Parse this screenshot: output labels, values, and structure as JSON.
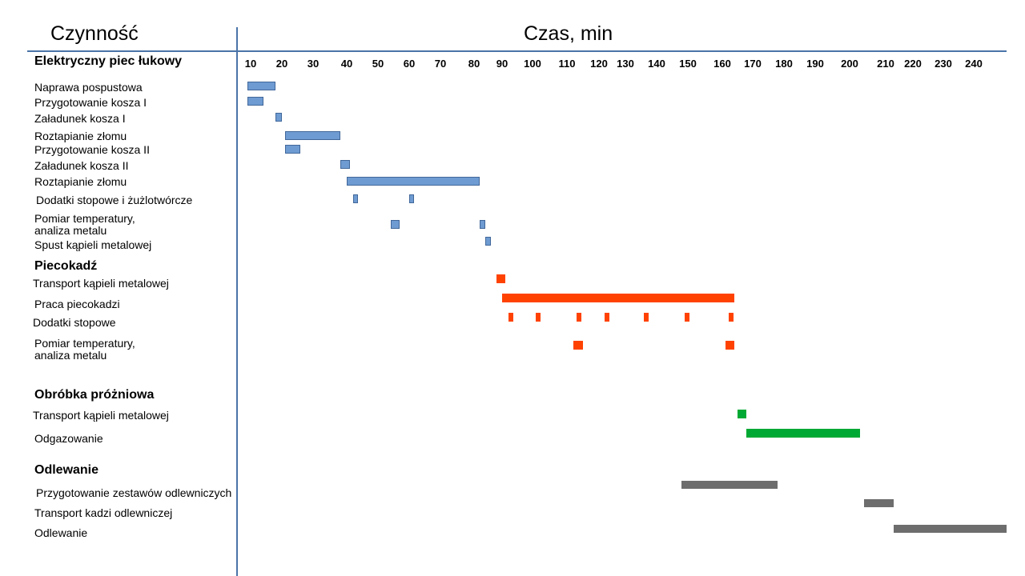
{
  "header": {
    "activity": "Czynność",
    "time": "Czas, min"
  },
  "colors": {
    "blue": "#6e9bd1",
    "red": "#ff4200",
    "green": "#00a933",
    "gray": "#6d6d6d",
    "axis": "#4a74a8"
  },
  "chart_data": {
    "type": "gantt",
    "xlabel": "Czas, min",
    "x_ticks": [
      10,
      20,
      30,
      40,
      50,
      60,
      70,
      80,
      90,
      100,
      110,
      120,
      130,
      140,
      150,
      160,
      170,
      180,
      190,
      200,
      210,
      220,
      230,
      240
    ],
    "sections": [
      {
        "name": "Elektryczny piec łukowy",
        "color": "blue",
        "tasks": [
          {
            "label": "Naprawa pospustowa",
            "segments": [
              [
                9,
                18
              ]
            ]
          },
          {
            "label": "Przygotowanie kosza I",
            "segments": [
              [
                9,
                14
              ]
            ]
          },
          {
            "label": "Załadunek kosza I",
            "segments": [
              [
                18,
                20
              ]
            ]
          },
          {
            "label": "Roztapianie złomu",
            "segments": [
              [
                21,
                38
              ]
            ]
          },
          {
            "label": "Przygotowanie kosza II",
            "segments": [
              [
                21,
                26
              ]
            ]
          },
          {
            "label": "Załadunek kosza II",
            "segments": [
              [
                38,
                41
              ]
            ]
          },
          {
            "label": "Roztapianie złomu",
            "segments": [
              [
                40,
                82
              ]
            ]
          },
          {
            "label": "Dodatki stopowe i żużlotwórcze",
            "segments": [
              [
                42,
                43
              ],
              [
                60,
                61
              ]
            ]
          },
          {
            "label": "Pomiar temperatury,\nanaliza metalu",
            "segments": [
              [
                54,
                57
              ],
              [
                82,
                84
              ]
            ]
          },
          {
            "label": "Spust kąpieli metalowej",
            "segments": [
              [
                84,
                86
              ]
            ]
          }
        ]
      },
      {
        "name": "Piecokadź",
        "color": "red",
        "tasks": [
          {
            "label": "Transport kąpieli metalowej",
            "segments": [
              [
                88,
                91
              ]
            ]
          },
          {
            "label": "Praca piecokadzi",
            "segments": [
              [
                90,
                164
              ]
            ]
          },
          {
            "label": "Dodatki stopowe",
            "segments": [
              [
                92,
                93
              ],
              [
                101,
                102
              ],
              [
                113,
                114
              ],
              [
                122,
                123
              ],
              [
                136,
                137
              ],
              [
                149,
                150
              ],
              [
                162,
                163
              ]
            ]
          },
          {
            "label": "Pomiar temperatury,\nanaliza metalu",
            "segments": [
              [
                112,
                115
              ],
              [
                161,
                164
              ]
            ]
          }
        ]
      },
      {
        "name": "Obróbka próżniowa",
        "color": "green",
        "tasks": [
          {
            "label": "Transport kąpieli metalowej",
            "segments": [
              [
                165,
                168
              ]
            ]
          },
          {
            "label": "Odgazowanie",
            "segments": [
              [
                168,
                203
              ]
            ]
          }
        ]
      },
      {
        "name": "Odlewanie",
        "color": "gray",
        "tasks": [
          {
            "label": "Przygotowanie zestawów odlewniczych",
            "segments": [
              [
                148,
                178
              ]
            ]
          },
          {
            "label": "Transport kadzi odlewniczej",
            "segments": [
              [
                204,
                213
              ]
            ]
          },
          {
            "label": "Odlewanie",
            "segments": [
              [
                213,
                250
              ]
            ]
          }
        ]
      }
    ]
  }
}
